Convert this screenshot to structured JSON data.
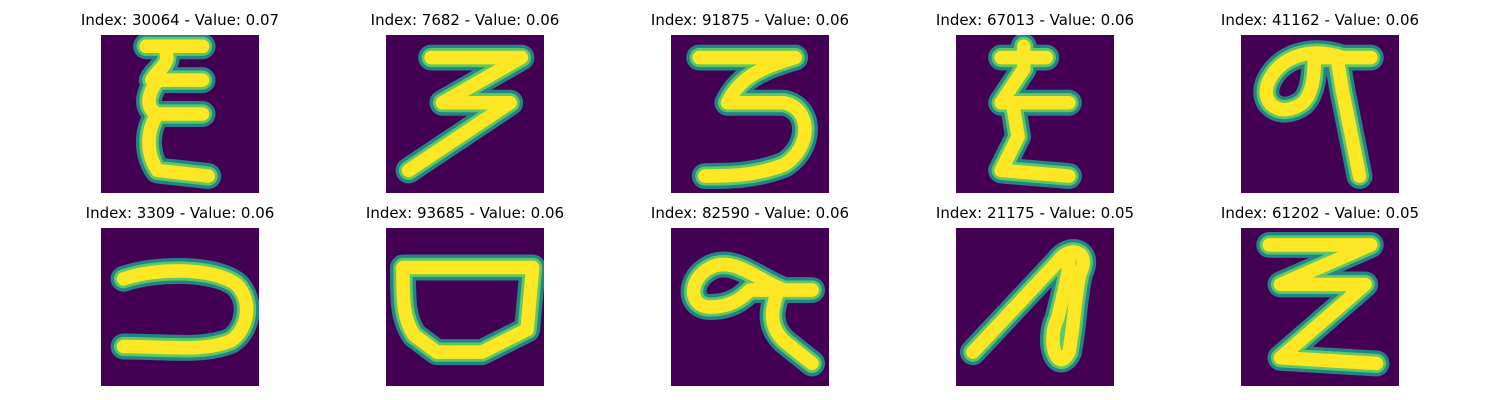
{
  "colors": {
    "background": "#440154",
    "stroke_core": "#fde725",
    "stroke_edge": "#21918c",
    "stroke_mid": "#5ec962"
  },
  "panels": [
    {
      "title": "Index: 30064 - Value: 0.07",
      "glyph": "stacked-e"
    },
    {
      "title": "Index: 7682 - Value: 0.06",
      "glyph": "three-zigzag"
    },
    {
      "title": "Index: 91875 - Value: 0.06",
      "glyph": "three-round"
    },
    {
      "title": "Index: 67013 - Value: 0.06",
      "glyph": "zigzag-z"
    },
    {
      "title": "Index: 41162 - Value: 0.06",
      "glyph": "loop-tail"
    },
    {
      "title": "Index: 3309 - Value: 0.06",
      "glyph": "reverse-c"
    },
    {
      "title": "Index: 93685 - Value: 0.06",
      "glyph": "bowl"
    },
    {
      "title": "Index: 82590 - Value: 0.06",
      "glyph": "loop-hook"
    },
    {
      "title": "Index: 21175 - Value: 0.05",
      "glyph": "diagonal-loop"
    },
    {
      "title": "Index: 61202 - Value: 0.05",
      "glyph": "double-z"
    }
  ]
}
